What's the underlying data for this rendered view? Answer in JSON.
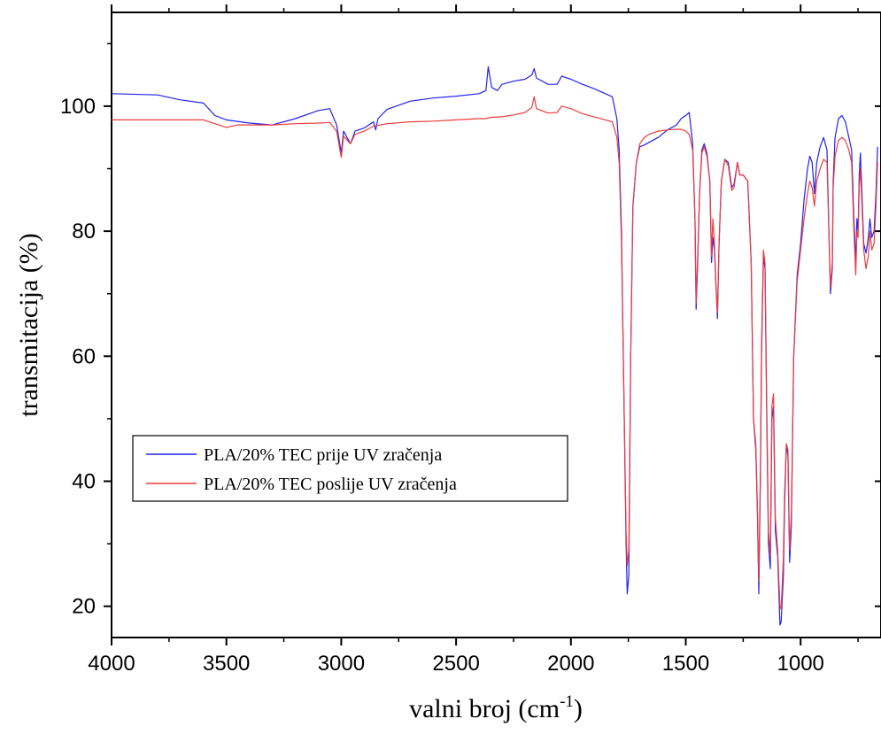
{
  "chart_data": {
    "type": "line",
    "title": "",
    "xlabel": "valni broj (cm",
    "xlabel_sup": "-1",
    "xlabel_close": ")",
    "ylabel": "transmitacija (%)",
    "xlim": [
      4000,
      650
    ],
    "ylim": [
      15,
      115
    ],
    "x_ticks": [
      4000,
      3500,
      3000,
      2500,
      2000,
      1500,
      1000
    ],
    "x_tick_labels": [
      "4000",
      "3500",
      "3000",
      "2500",
      "2000",
      "1500",
      "1000"
    ],
    "y_ticks": [
      20,
      40,
      60,
      80,
      100
    ],
    "y_tick_labels": [
      "20",
      "40",
      "60",
      "80",
      "100"
    ],
    "grid": false,
    "legend_position": "left-middle",
    "series": [
      {
        "name": "PLA/20% TEC prije UV zračenja",
        "color": "#2222ee",
        "points": [
          [
            4000,
            102
          ],
          [
            3800,
            101.8
          ],
          [
            3700,
            101
          ],
          [
            3600,
            100.5
          ],
          [
            3550,
            98.5
          ],
          [
            3500,
            97.8
          ],
          [
            3400,
            97.3
          ],
          [
            3300,
            97
          ],
          [
            3200,
            98
          ],
          [
            3100,
            99.3
          ],
          [
            3050,
            99.6
          ],
          [
            3020,
            97
          ],
          [
            3000,
            92.5
          ],
          [
            2990,
            96
          ],
          [
            2960,
            94
          ],
          [
            2940,
            96
          ],
          [
            2900,
            96.5
          ],
          [
            2860,
            97.5
          ],
          [
            2850,
            96.2
          ],
          [
            2840,
            98
          ],
          [
            2800,
            99.5
          ],
          [
            2700,
            100.8
          ],
          [
            2600,
            101.3
          ],
          [
            2500,
            101.6
          ],
          [
            2400,
            102
          ],
          [
            2370,
            102.5
          ],
          [
            2360,
            106.3
          ],
          [
            2345,
            103
          ],
          [
            2320,
            102.5
          ],
          [
            2300,
            103.5
          ],
          [
            2250,
            104
          ],
          [
            2200,
            104.3
          ],
          [
            2170,
            105
          ],
          [
            2160,
            106
          ],
          [
            2150,
            104.5
          ],
          [
            2100,
            103.5
          ],
          [
            2060,
            103.5
          ],
          [
            2040,
            104.8
          ],
          [
            2000,
            104.3
          ],
          [
            1950,
            103.5
          ],
          [
            1900,
            102.8
          ],
          [
            1850,
            102
          ],
          [
            1820,
            101.5
          ],
          [
            1800,
            98
          ],
          [
            1790,
            93
          ],
          [
            1780,
            80
          ],
          [
            1770,
            55
          ],
          [
            1760,
            30
          ],
          [
            1755,
            22
          ],
          [
            1748,
            25
          ],
          [
            1740,
            60
          ],
          [
            1730,
            84
          ],
          [
            1715,
            91
          ],
          [
            1700,
            93.5
          ],
          [
            1680,
            93.8
          ],
          [
            1660,
            94.2
          ],
          [
            1620,
            95
          ],
          [
            1580,
            96.2
          ],
          [
            1540,
            97
          ],
          [
            1520,
            98
          ],
          [
            1500,
            98.5
          ],
          [
            1485,
            99
          ],
          [
            1470,
            94
          ],
          [
            1460,
            82
          ],
          [
            1455,
            67.5
          ],
          [
            1448,
            75
          ],
          [
            1440,
            86
          ],
          [
            1430,
            93
          ],
          [
            1420,
            94
          ],
          [
            1408,
            92.5
          ],
          [
            1395,
            88
          ],
          [
            1388,
            75
          ],
          [
            1382,
            79
          ],
          [
            1375,
            77
          ],
          [
            1368,
            71
          ],
          [
            1362,
            66
          ],
          [
            1355,
            78
          ],
          [
            1345,
            88
          ],
          [
            1330,
            91.5
          ],
          [
            1315,
            91
          ],
          [
            1300,
            87
          ],
          [
            1290,
            87.5
          ],
          [
            1275,
            91
          ],
          [
            1265,
            89
          ],
          [
            1250,
            89
          ],
          [
            1230,
            88
          ],
          [
            1215,
            75
          ],
          [
            1205,
            50
          ],
          [
            1195,
            45
          ],
          [
            1188,
            35
          ],
          [
            1182,
            22
          ],
          [
            1175,
            40
          ],
          [
            1170,
            60
          ],
          [
            1162,
            76
          ],
          [
            1155,
            74
          ],
          [
            1148,
            52
          ],
          [
            1140,
            30
          ],
          [
            1132,
            26
          ],
          [
            1125,
            50
          ],
          [
            1118,
            52
          ],
          [
            1110,
            32
          ],
          [
            1100,
            28
          ],
          [
            1090,
            17
          ],
          [
            1085,
            17.5
          ],
          [
            1075,
            25
          ],
          [
            1070,
            36
          ],
          [
            1062,
            46
          ],
          [
            1055,
            44
          ],
          [
            1048,
            27
          ],
          [
            1040,
            33
          ],
          [
            1030,
            60
          ],
          [
            1015,
            73
          ],
          [
            1000,
            78
          ],
          [
            985,
            85
          ],
          [
            970,
            90
          ],
          [
            960,
            92
          ],
          [
            950,
            91
          ],
          [
            940,
            86
          ],
          [
            930,
            91
          ],
          [
            915,
            93.5
          ],
          [
            900,
            95
          ],
          [
            885,
            93
          ],
          [
            870,
            70
          ],
          [
            862,
            74
          ],
          [
            858,
            88
          ],
          [
            850,
            95
          ],
          [
            835,
            98
          ],
          [
            820,
            98.5
          ],
          [
            805,
            97.5
          ],
          [
            790,
            95
          ],
          [
            778,
            93
          ],
          [
            768,
            82
          ],
          [
            760,
            75
          ],
          [
            755,
            82
          ],
          [
            750,
            80
          ],
          [
            745,
            89
          ],
          [
            740,
            92.5
          ],
          [
            735,
            88
          ],
          [
            725,
            78
          ],
          [
            715,
            76.5
          ],
          [
            705,
            79
          ],
          [
            698,
            82
          ],
          [
            690,
            79
          ],
          [
            680,
            80
          ],
          [
            672,
            86
          ],
          [
            665,
            93.5
          ]
        ]
      },
      {
        "name": "PLA/20% TEC poslije UV zračenja",
        "color": "#ee3b3b",
        "points": [
          [
            4000,
            97.8
          ],
          [
            3800,
            97.8
          ],
          [
            3700,
            97.8
          ],
          [
            3600,
            97.8
          ],
          [
            3550,
            97.2
          ],
          [
            3500,
            96.6
          ],
          [
            3450,
            97
          ],
          [
            3400,
            97
          ],
          [
            3300,
            97
          ],
          [
            3200,
            97.2
          ],
          [
            3100,
            97.3
          ],
          [
            3050,
            97.4
          ],
          [
            3020,
            96
          ],
          [
            3000,
            91.8
          ],
          [
            2990,
            95.2
          ],
          [
            2960,
            94
          ],
          [
            2940,
            95.5
          ],
          [
            2900,
            96
          ],
          [
            2860,
            96.8
          ],
          [
            2800,
            97.2
          ],
          [
            2700,
            97.5
          ],
          [
            2600,
            97.6
          ],
          [
            2500,
            97.8
          ],
          [
            2400,
            98
          ],
          [
            2370,
            98
          ],
          [
            2350,
            98.2
          ],
          [
            2300,
            98.3
          ],
          [
            2250,
            98.6
          ],
          [
            2200,
            99
          ],
          [
            2170,
            99.8
          ],
          [
            2160,
            101.5
          ],
          [
            2150,
            99.6
          ],
          [
            2100,
            98.9
          ],
          [
            2060,
            99
          ],
          [
            2040,
            100
          ],
          [
            2000,
            99.6
          ],
          [
            1950,
            98.8
          ],
          [
            1900,
            98.3
          ],
          [
            1850,
            97.8
          ],
          [
            1820,
            97.5
          ],
          [
            1800,
            95
          ],
          [
            1790,
            91
          ],
          [
            1780,
            78
          ],
          [
            1770,
            55
          ],
          [
            1760,
            32
          ],
          [
            1755,
            26.5
          ],
          [
            1748,
            29
          ],
          [
            1740,
            60
          ],
          [
            1730,
            84
          ],
          [
            1715,
            91
          ],
          [
            1700,
            94
          ],
          [
            1680,
            95
          ],
          [
            1660,
            95.5
          ],
          [
            1620,
            96
          ],
          [
            1580,
            96.2
          ],
          [
            1540,
            96.3
          ],
          [
            1520,
            96.3
          ],
          [
            1500,
            96
          ],
          [
            1485,
            95.5
          ],
          [
            1470,
            93
          ],
          [
            1460,
            82
          ],
          [
            1455,
            68.5
          ],
          [
            1448,
            76
          ],
          [
            1440,
            86
          ],
          [
            1430,
            92.5
          ],
          [
            1420,
            93.5
          ],
          [
            1408,
            92
          ],
          [
            1395,
            88
          ],
          [
            1388,
            76
          ],
          [
            1382,
            82
          ],
          [
            1375,
            78
          ],
          [
            1368,
            71
          ],
          [
            1362,
            67
          ],
          [
            1355,
            78
          ],
          [
            1345,
            88
          ],
          [
            1330,
            91.5
          ],
          [
            1315,
            90.5
          ],
          [
            1300,
            86.5
          ],
          [
            1290,
            87
          ],
          [
            1275,
            91
          ],
          [
            1265,
            89
          ],
          [
            1250,
            89
          ],
          [
            1230,
            88
          ],
          [
            1215,
            75
          ],
          [
            1205,
            50
          ],
          [
            1195,
            46
          ],
          [
            1188,
            36
          ],
          [
            1182,
            24
          ],
          [
            1175,
            42
          ],
          [
            1170,
            62
          ],
          [
            1162,
            77
          ],
          [
            1155,
            75
          ],
          [
            1148,
            54
          ],
          [
            1140,
            32
          ],
          [
            1132,
            28
          ],
          [
            1125,
            52
          ],
          [
            1118,
            54
          ],
          [
            1110,
            34
          ],
          [
            1100,
            29
          ],
          [
            1090,
            20
          ],
          [
            1085,
            19.5
          ],
          [
            1075,
            28
          ],
          [
            1070,
            38
          ],
          [
            1062,
            46
          ],
          [
            1055,
            45
          ],
          [
            1048,
            29
          ],
          [
            1040,
            35
          ],
          [
            1030,
            60
          ],
          [
            1015,
            72
          ],
          [
            1000,
            77
          ],
          [
            985,
            82
          ],
          [
            970,
            86
          ],
          [
            960,
            88
          ],
          [
            950,
            87
          ],
          [
            940,
            84
          ],
          [
            930,
            88
          ],
          [
            915,
            90
          ],
          [
            900,
            91.5
          ],
          [
            885,
            91
          ],
          [
            870,
            71
          ],
          [
            862,
            75
          ],
          [
            858,
            87
          ],
          [
            850,
            92
          ],
          [
            835,
            94.5
          ],
          [
            820,
            95
          ],
          [
            805,
            94.5
          ],
          [
            790,
            93
          ],
          [
            778,
            91
          ],
          [
            768,
            80
          ],
          [
            760,
            73
          ],
          [
            755,
            80
          ],
          [
            750,
            79
          ],
          [
            745,
            87
          ],
          [
            740,
            90
          ],
          [
            735,
            86
          ],
          [
            725,
            77
          ],
          [
            715,
            74
          ],
          [
            705,
            76
          ],
          [
            698,
            80
          ],
          [
            690,
            77
          ],
          [
            680,
            78
          ],
          [
            672,
            84
          ],
          [
            665,
            91
          ]
        ]
      }
    ]
  }
}
